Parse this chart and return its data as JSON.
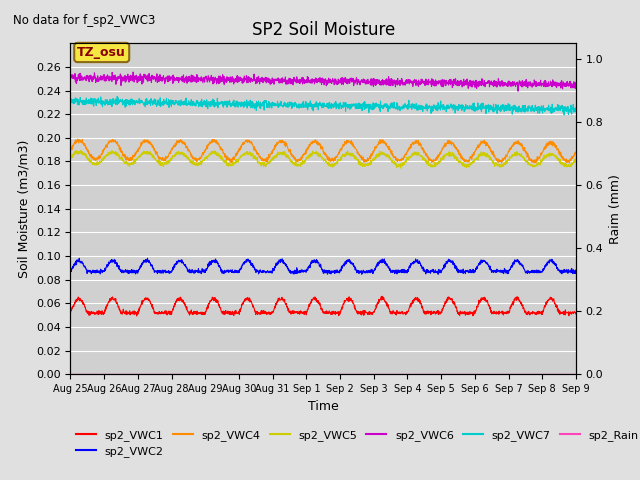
{
  "title": "SP2 Soil Moisture",
  "subtitle": "No data for f_sp2_VWC3",
  "ylabel_left": "Soil Moisture (m3/m3)",
  "ylabel_right": "Raim (mm)",
  "xlabel": "Time",
  "timezone_label": "TZ_osu",
  "background_color": "#e0e0e0",
  "plot_bg_color": "#d0d0d0",
  "ylim_left": [
    0.0,
    0.28
  ],
  "ylim_right": [
    0.0,
    1.05
  ],
  "yticks_left": [
    0.0,
    0.02,
    0.04,
    0.06,
    0.08,
    0.1,
    0.12,
    0.14,
    0.16,
    0.18,
    0.2,
    0.22,
    0.24,
    0.26
  ],
  "yticks_right": [
    0.0,
    0.2,
    0.4,
    0.6,
    0.8,
    1.0
  ],
  "series": {
    "sp2_VWC1": {
      "color": "#ff0000",
      "base": 0.052,
      "amp": 0.012,
      "freq": 1.0,
      "trend": 0.0
    },
    "sp2_VWC2": {
      "color": "#0000ff",
      "base": 0.087,
      "amp": 0.009,
      "freq": 1.0,
      "trend": 0.0
    },
    "sp2_VWC4": {
      "color": "#ff8c00",
      "base": 0.19,
      "amp": 0.008,
      "freq": 1.0,
      "trend": -0.002
    },
    "sp2_VWC5": {
      "color": "#cccc00",
      "base": 0.183,
      "amp": 0.005,
      "freq": 1.0,
      "trend": -0.002
    },
    "sp2_VWC6": {
      "color": "#cc00cc",
      "base": 0.251,
      "amp": 0.0,
      "freq": 0.0,
      "trend": -0.006
    },
    "sp2_VWC7": {
      "color": "#00cccc",
      "base": 0.231,
      "amp": 0.0,
      "freq": 0.0,
      "trend": -0.007
    },
    "sp2_Rain": {
      "color": "#ff44bb",
      "base": 0.0,
      "amp": 0.0,
      "freq": 0.0,
      "trend": 0.0
    }
  },
  "xtick_labels": [
    "Aug 25",
    "Aug 26",
    "Aug 27",
    "Aug 28",
    "Aug 29",
    "Aug 30",
    "Aug 31",
    "Sep 1",
    "Sep 2",
    "Sep 3",
    "Sep 4",
    "Sep 5",
    "Sep 6",
    "Sep 7",
    "Sep 8",
    "Sep 9"
  ],
  "num_points": 2000,
  "days": 15
}
